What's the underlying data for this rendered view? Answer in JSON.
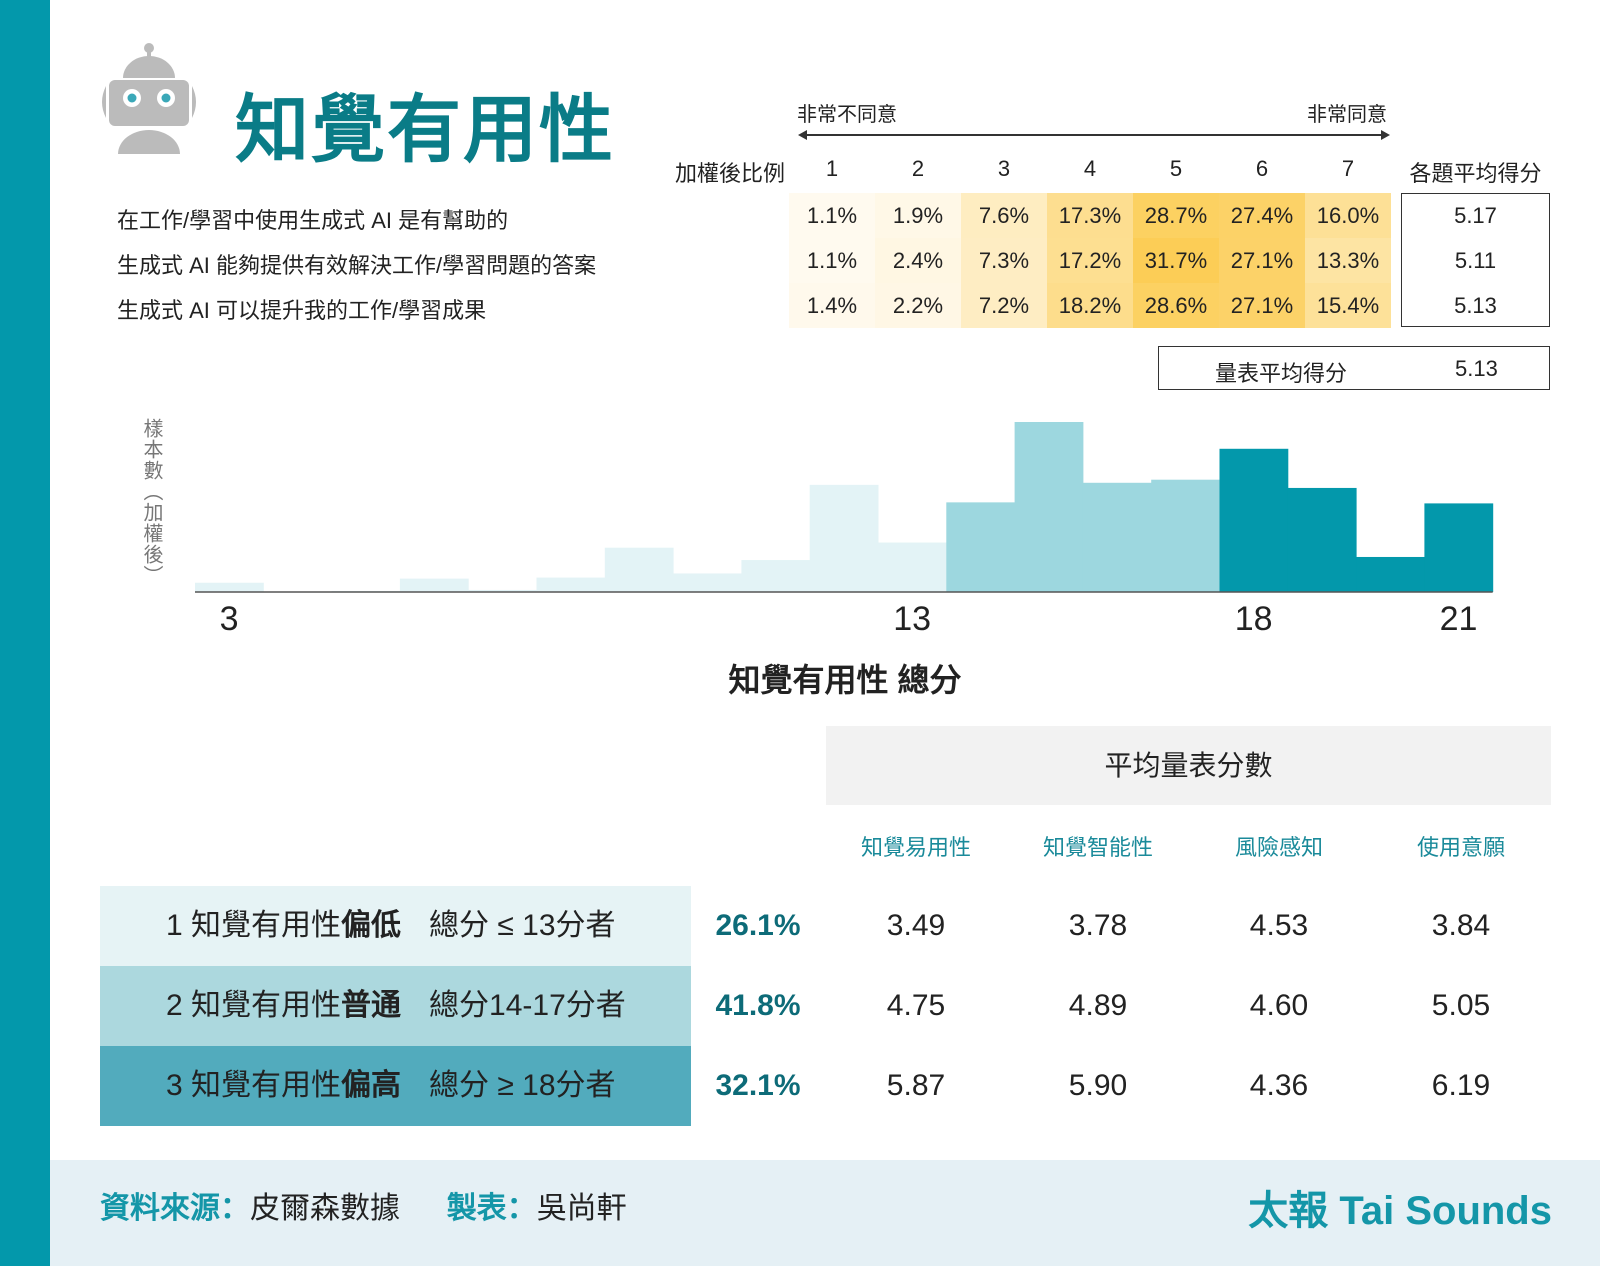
{
  "title": "知覺有用性",
  "scale": {
    "left_label": "非常不同意",
    "right_label": "非常同意",
    "weighted_label": "加權後比例",
    "points": [
      "1",
      "2",
      "3",
      "4",
      "5",
      "6",
      "7"
    ],
    "avg_header": "各題平均得分"
  },
  "questions": [
    {
      "text": "在工作/學習中使用生成式 AI 是有幫助的",
      "pcts": [
        "1.1%",
        "1.9%",
        "7.6%",
        "17.3%",
        "28.7%",
        "27.4%",
        "16.0%"
      ],
      "avg": "5.17"
    },
    {
      "text": "生成式 AI 能夠提供有效解決工作/學習問題的答案",
      "pcts": [
        "1.1%",
        "2.4%",
        "7.3%",
        "17.2%",
        "31.7%",
        "27.1%",
        "13.3%"
      ],
      "avg": "5.11"
    },
    {
      "text": "生成式 AI 可以提升我的工作/學習成果",
      "pcts": [
        "1.4%",
        "2.2%",
        "7.2%",
        "18.2%",
        "28.6%",
        "27.1%",
        "15.4%"
      ],
      "avg": "5.13"
    }
  ],
  "scale_avg": {
    "label": "量表平均得分",
    "value": "5.13"
  },
  "chart_data": {
    "type": "bar",
    "title": "",
    "xlabel": "知覺有用性 總分",
    "ylabel": "樣本數（加權後）",
    "x": [
      3,
      4,
      5,
      6,
      7,
      8,
      9,
      10,
      11,
      12,
      13,
      14,
      15,
      16,
      17,
      18,
      19,
      20,
      21
    ],
    "values": [
      9,
      0.5,
      1,
      13,
      2,
      14,
      43,
      18,
      31,
      104,
      48,
      87,
      165,
      106,
      109,
      139,
      101,
      34,
      86
    ],
    "value_units": "relative (no y-axis scale shown)",
    "tick_labels": [
      "3",
      "13",
      "18",
      "21"
    ],
    "groups": [
      {
        "range": [
          3,
          13
        ],
        "color": "#e3f3f6"
      },
      {
        "range": [
          14,
          17
        ],
        "color": "#9dd7df"
      },
      {
        "range": [
          18,
          21
        ],
        "color": "#0398ab"
      }
    ]
  },
  "groups_table": {
    "header": "平均量表分數",
    "columns": [
      "知覺易用性",
      "知覺智能性",
      "風險感知",
      "使用意願"
    ],
    "rows": [
      {
        "num": "1",
        "name": "知覺有用性",
        "level": "偏低",
        "criteria": "總分 ≤ 13分者",
        "pct": "26.1%",
        "values": [
          "3.49",
          "3.78",
          "4.53",
          "3.84"
        ],
        "color": "#e6f3f5"
      },
      {
        "num": "2",
        "name": "知覺有用性",
        "level": "普通",
        "criteria": "總分14-17分者",
        "pct": "41.8%",
        "values": [
          "4.75",
          "4.89",
          "4.60",
          "5.05"
        ],
        "color": "#acd8de"
      },
      {
        "num": "3",
        "name": "知覺有用性",
        "level": "偏高",
        "criteria": "總分 ≥ 18分者",
        "pct": "32.1%",
        "values": [
          "5.87",
          "5.90",
          "4.36",
          "6.19"
        ],
        "color": "#52abbd"
      }
    ]
  },
  "footer": {
    "source_label": "資料來源：",
    "source": "皮爾森數據",
    "maker_label": "製表：",
    "maker": "吳尚軒",
    "brand": "太報 Tai Sounds"
  }
}
